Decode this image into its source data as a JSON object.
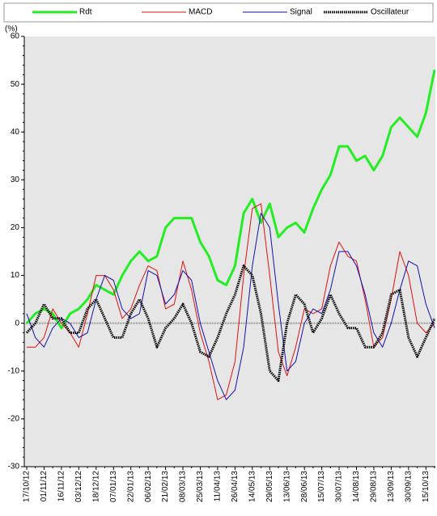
{
  "chart_data": {
    "type": "line",
    "y_label": "(%)",
    "categories": [
      "17/10/12",
      null,
      "01/11/12",
      null,
      "16/11/12",
      null,
      "03/12/12",
      null,
      "18/12/12",
      null,
      "07/01/13",
      null,
      "22/01/13",
      null,
      "06/02/13",
      null,
      "21/02/13",
      null,
      "08/03/13",
      null,
      "25/03/13",
      null,
      "11/04/13",
      null,
      "26/04/13",
      null,
      "14/05/13",
      null,
      "29/05/13",
      null,
      "13/06/13",
      null,
      "28/06/13",
      null,
      "15/07/13",
      null,
      "30/07/13",
      null,
      "14/08/13",
      null,
      "29/08/13",
      null,
      "13/09/13",
      null,
      "30/09/13",
      null,
      "15/10/13",
      null
    ],
    "series": [
      {
        "name": "Rdt",
        "color": "#22ee22",
        "values": [
          0,
          2,
          3,
          2,
          -1,
          2,
          3,
          5,
          8,
          7,
          6,
          10,
          13,
          15,
          13,
          14,
          20,
          22,
          22,
          22,
          17,
          14,
          9,
          8,
          12,
          23,
          26,
          21,
          25,
          18,
          20,
          21,
          19,
          24,
          28,
          31,
          37,
          37,
          34,
          35,
          32,
          35,
          41,
          43,
          41,
          39,
          44,
          53
        ]
      },
      {
        "name": "MACD",
        "color": "#dd1111",
        "values": [
          -5,
          -5,
          -3,
          3,
          0,
          -2,
          -5,
          2,
          10,
          10,
          7,
          1,
          3,
          8,
          12,
          11,
          3,
          4,
          13,
          7,
          -2,
          -8,
          -16,
          -15,
          -8,
          10,
          24,
          25,
          10,
          -6,
          -11,
          -5,
          3,
          2,
          3,
          12,
          17,
          14,
          13,
          5,
          -5,
          -3,
          5,
          15,
          10,
          0,
          -2,
          0
        ]
      },
      {
        "name": "Signal",
        "color": "#1111aa",
        "values": [
          2,
          -3,
          -5,
          -1,
          1,
          0,
          -3,
          -2,
          5,
          10,
          9,
          3,
          1,
          2,
          11,
          10,
          4,
          6,
          11,
          9,
          0,
          -6,
          -12,
          -16,
          -14,
          -5,
          12,
          23,
          20,
          4,
          -10,
          -8,
          0,
          3,
          2,
          7,
          15,
          15,
          12,
          6,
          -2,
          -5,
          0,
          7,
          13,
          12,
          4,
          -1
        ]
      },
      {
        "name": "Oscillateur",
        "color": "#000000",
        "values": [
          -2,
          0,
          4,
          1,
          1,
          -2,
          -2,
          3,
          5,
          1,
          -3,
          -3,
          2,
          5,
          1,
          -5,
          -1,
          1,
          4,
          0,
          -6,
          -7,
          -3,
          2,
          6,
          12,
          10,
          2,
          -10,
          -12,
          0,
          6,
          4,
          -2,
          1,
          6,
          2,
          -1,
          -1,
          -5,
          -5,
          -2,
          6,
          7,
          -3,
          -7,
          -3,
          1
        ]
      }
    ],
    "ylim": [
      -30,
      60
    ],
    "yticks": [
      -30,
      -20,
      -10,
      0,
      10,
      20,
      30,
      40,
      50,
      60
    ]
  }
}
